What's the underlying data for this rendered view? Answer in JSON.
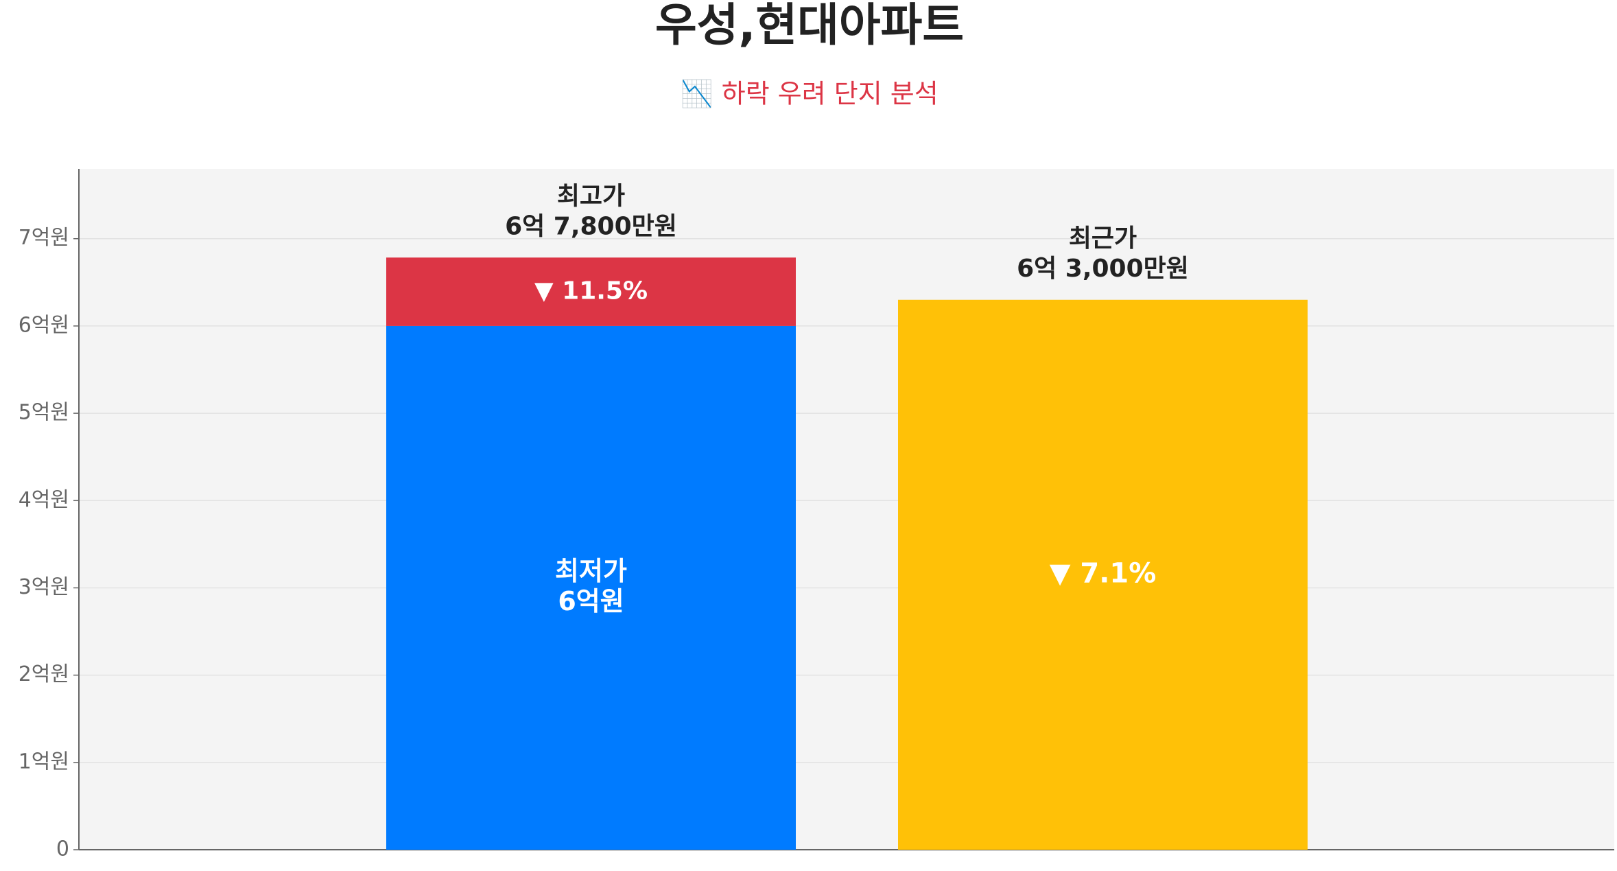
{
  "chart_data": {
    "type": "bar",
    "title": "우성,현대아파트",
    "subtitle": "📉 하락 우려 단지 분석",
    "ylim": [
      0,
      7.8
    ],
    "yticks": [
      0,
      {
        "value": 1,
        "label": "1억원"
      },
      {
        "value": 2,
        "label": "2억원"
      },
      {
        "value": 3,
        "label": "3억원"
      },
      {
        "value": 4,
        "label": "4억원"
      },
      {
        "value": 5,
        "label": "5억원"
      },
      {
        "value": 6,
        "label": "6억원"
      },
      {
        "value": 7,
        "label": "7억원"
      }
    ],
    "grid": true,
    "low": {
      "name": "최저가",
      "value": 6,
      "value_label": "6억원",
      "color": "#007bff"
    },
    "drop": {
      "value": 0.78,
      "color": "#dc3545",
      "label": "▼ 11.5%"
    },
    "high": {
      "name": "최고가",
      "value": 6.78,
      "value_label": "6억 7,800만원"
    },
    "recent": {
      "name": "최근가",
      "value": 6.3,
      "value_label": "6억 3,000만원",
      "color": "#ffc107",
      "label": "▼ 7.1%"
    }
  }
}
